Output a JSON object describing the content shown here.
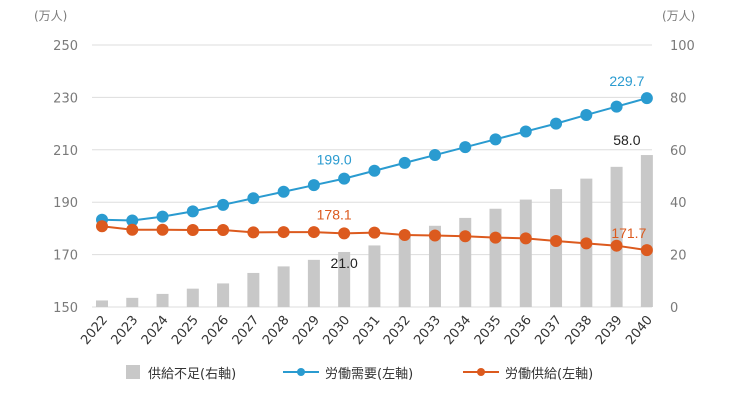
{
  "chart_data": {
    "type": "bar+line",
    "x": [
      "2022",
      "2023",
      "2024",
      "2025",
      "2026",
      "2027",
      "2028",
      "2029",
      "2030",
      "2031",
      "2032",
      "2033",
      "2034",
      "2035",
      "2036",
      "2037",
      "2038",
      "2039",
      "2040"
    ],
    "left_axis": {
      "unit": "(万人)",
      "ylim": [
        150,
        250
      ],
      "ticks": [
        "150",
        "170",
        "190",
        "210",
        "230",
        "250"
      ]
    },
    "right_axis": {
      "unit": "(万人)",
      "ylim": [
        0,
        100
      ],
      "ticks": [
        "0",
        "20",
        "40",
        "60",
        "80",
        "100"
      ]
    },
    "series": [
      {
        "name": "供給不足(右軸)",
        "type": "bar",
        "axis": "right",
        "color": "#c8c8c8",
        "values": [
          2.5,
          3.5,
          5.0,
          7.0,
          9.0,
          13.0,
          15.5,
          18.0,
          21.0,
          23.5,
          27.5,
          31.0,
          34.0,
          37.5,
          41.0,
          45.0,
          49.0,
          53.5,
          58.0
        ]
      },
      {
        "name": "労働需要(左軸)",
        "type": "line",
        "axis": "left",
        "color": "#2a9bd0",
        "values": [
          183.3,
          183.0,
          184.5,
          186.5,
          189.0,
          191.5,
          194.0,
          196.5,
          199.0,
          202.0,
          205.0,
          208.0,
          211.0,
          214.0,
          217.0,
          220.0,
          223.3,
          226.5,
          229.7
        ]
      },
      {
        "name": "労働供給(左軸)",
        "type": "line",
        "axis": "left",
        "color": "#dc5a1e",
        "values": [
          180.8,
          179.5,
          179.5,
          179.4,
          179.4,
          178.5,
          178.6,
          178.6,
          178.1,
          178.4,
          177.5,
          177.3,
          177.0,
          176.5,
          176.2,
          175.2,
          174.3,
          173.4,
          171.7
        ]
      }
    ],
    "annotations": [
      {
        "text": "229.7",
        "color": "#2a9bd0"
      },
      {
        "text": "199.0",
        "color": "#2a9bd0"
      },
      {
        "text": "178.1",
        "color": "#dc5a1e"
      },
      {
        "text": "171.7",
        "color": "#dc5a1e"
      },
      {
        "text": "58.0",
        "color": "#222222"
      },
      {
        "text": "21.0",
        "color": "#222222"
      }
    ],
    "grid": true,
    "legend_position": "bottom"
  }
}
